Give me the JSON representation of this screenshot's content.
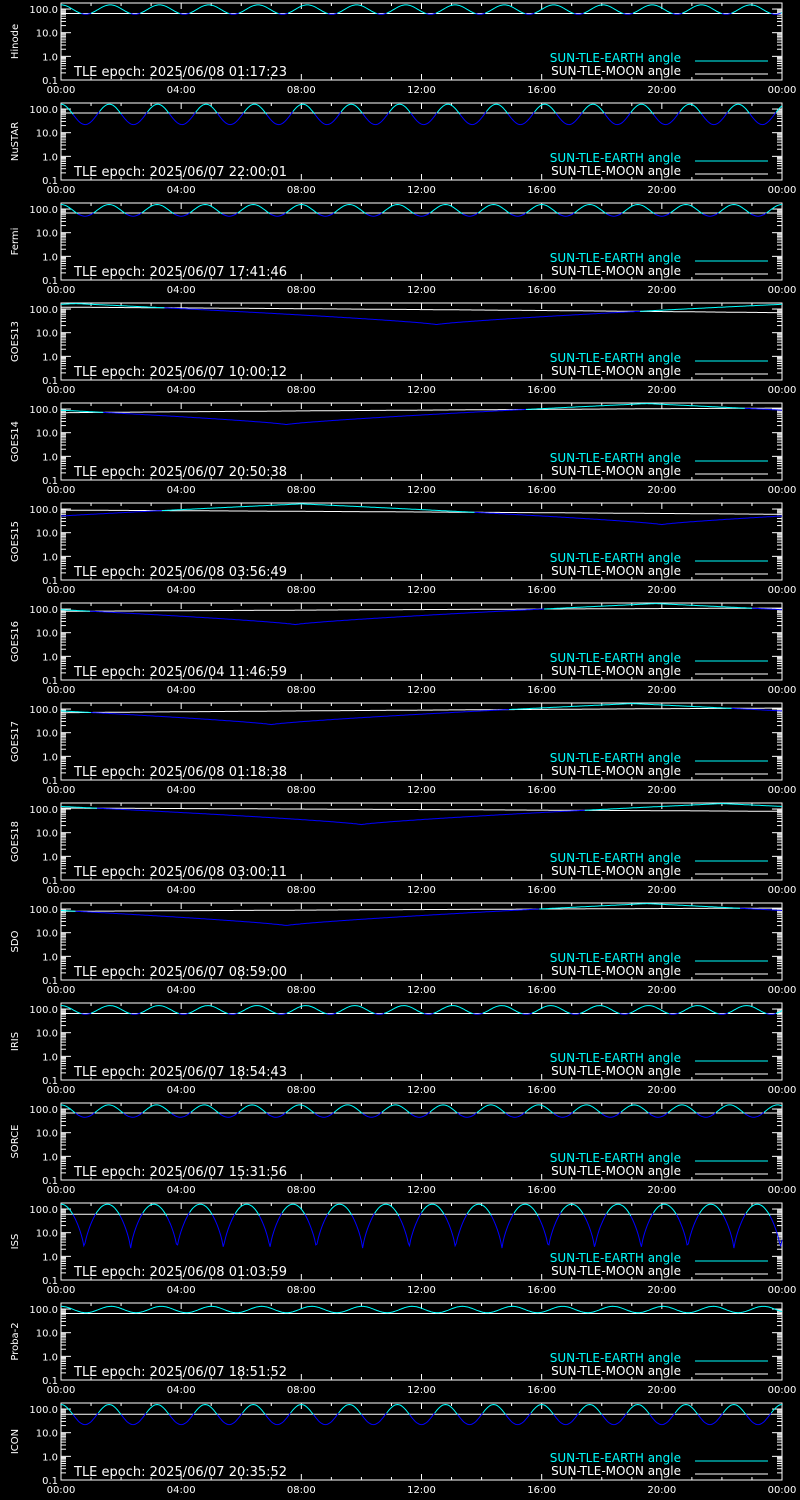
{
  "colors": {
    "background": "#000000",
    "axes": "#ffffff",
    "sun_earth": "#00ffff",
    "sun_moon": "#ffffff",
    "dip": "#0000ff"
  },
  "legend": {
    "earth_label": "SUN-TLE-EARTH angle",
    "moon_label": "SUN-TLE-MOON angle",
    "placement": "bottom-right"
  },
  "x_ticks": [
    "00:00",
    "04:00",
    "08:00",
    "12:00",
    "16:00",
    "20:00",
    "00:00"
  ],
  "y_ticks": [
    "100.0",
    "10.0",
    "1.0",
    "0.1"
  ],
  "chart_data": [
    {
      "type": "line",
      "panel_label": "Hinode",
      "epoch": "TLE epoch: 2025/06/08 01:17:23",
      "ylim": [
        0.1,
        180
      ],
      "y_scale": "log",
      "x_range_hours": [
        0,
        24
      ],
      "series": [
        {
          "kind": "earth_orbit",
          "period_hours": 1.64,
          "max": 150,
          "min": 60
        },
        {
          "kind": "moon_flat",
          "value": 65
        }
      ]
    },
    {
      "type": "line",
      "panel_label": "NuSTAR",
      "epoch": "TLE epoch: 2025/06/07 22:00:01",
      "ylim": [
        0.1,
        180
      ],
      "y_scale": "log",
      "x_range_hours": [
        0,
        24
      ],
      "series": [
        {
          "kind": "earth_orbit",
          "period_hours": 1.61,
          "max": 160,
          "min": 22
        },
        {
          "kind": "moon_flat",
          "value": 68
        }
      ]
    },
    {
      "type": "line",
      "panel_label": "Fermi",
      "epoch": "TLE epoch: 2025/06/07 17:41:46",
      "ylim": [
        0.1,
        180
      ],
      "y_scale": "log",
      "x_range_hours": [
        0,
        24
      ],
      "series": [
        {
          "kind": "earth_orbit",
          "period_hours": 1.6,
          "max": 155,
          "min": 50
        },
        {
          "kind": "moon_flat",
          "value": 68
        }
      ]
    },
    {
      "type": "line",
      "panel_label": "GOES13",
      "epoch": "TLE epoch: 2025/06/07 10:00:12",
      "ylim": [
        0.1,
        180
      ],
      "y_scale": "log",
      "x_range_hours": [
        0,
        24
      ],
      "series": [
        {
          "kind": "earth_geo",
          "min_hour": 12.5,
          "max": 170,
          "min": 22
        },
        {
          "kind": "moon_linear",
          "start": 120,
          "end": 70
        }
      ]
    },
    {
      "type": "line",
      "panel_label": "GOES14",
      "epoch": "TLE epoch: 2025/06/07 20:50:38",
      "ylim": [
        0.1,
        180
      ],
      "y_scale": "log",
      "x_range_hours": [
        0,
        24
      ],
      "series": [
        {
          "kind": "earth_geo",
          "min_hour": 7.5,
          "max": 170,
          "min": 22
        },
        {
          "kind": "moon_linear",
          "start": 70,
          "end": 110
        }
      ]
    },
    {
      "type": "line",
      "panel_label": "GOES15",
      "epoch": "TLE epoch: 2025/06/08 03:56:49",
      "ylim": [
        0.1,
        180
      ],
      "y_scale": "log",
      "x_range_hours": [
        0,
        24
      ],
      "series": [
        {
          "kind": "earth_geo",
          "min_hour": 20,
          "max": 165,
          "min": 22
        },
        {
          "kind": "moon_linear",
          "start": 90,
          "end": 60
        }
      ]
    },
    {
      "type": "line",
      "panel_label": "GOES16",
      "epoch": "TLE epoch: 2025/06/04 11:46:59",
      "ylim": [
        0.1,
        180
      ],
      "y_scale": "log",
      "x_range_hours": [
        0,
        24
      ],
      "series": [
        {
          "kind": "earth_geo",
          "min_hour": 7.8,
          "max": 170,
          "min": 22
        },
        {
          "kind": "moon_linear",
          "start": 80,
          "end": 110
        }
      ]
    },
    {
      "type": "line",
      "panel_label": "GOES17",
      "epoch": "TLE epoch: 2025/06/08 01:18:38",
      "ylim": [
        0.1,
        180
      ],
      "y_scale": "log",
      "x_range_hours": [
        0,
        24
      ],
      "series": [
        {
          "kind": "earth_geo",
          "min_hour": 7,
          "max": 170,
          "min": 22
        },
        {
          "kind": "moon_linear",
          "start": 70,
          "end": 110
        }
      ]
    },
    {
      "type": "line",
      "panel_label": "GOES18",
      "epoch": "TLE epoch: 2025/06/08 03:00:11",
      "ylim": [
        0.1,
        180
      ],
      "y_scale": "log",
      "x_range_hours": [
        0,
        24
      ],
      "series": [
        {
          "kind": "earth_geo",
          "min_hour": 10,
          "max": 170,
          "min": 22
        },
        {
          "kind": "moon_linear",
          "start": 110,
          "end": 80
        }
      ]
    },
    {
      "type": "line",
      "panel_label": "SDO",
      "epoch": "TLE epoch: 2025/06/07 08:59:00",
      "ylim": [
        0.1,
        180
      ],
      "y_scale": "log",
      "x_range_hours": [
        0,
        24
      ],
      "series": [
        {
          "kind": "earth_geo",
          "min_hour": 7.5,
          "max": 170,
          "min": 20
        },
        {
          "kind": "moon_linear",
          "start": 80,
          "end": 110
        }
      ]
    },
    {
      "type": "line",
      "panel_label": "IRIS",
      "epoch": "TLE epoch: 2025/06/07 18:54:43",
      "ylim": [
        0.1,
        180
      ],
      "y_scale": "log",
      "x_range_hours": [
        0,
        24
      ],
      "series": [
        {
          "kind": "earth_orbit",
          "period_hours": 1.63,
          "max": 140,
          "min": 60
        },
        {
          "kind": "moon_flat",
          "value": 65
        }
      ]
    },
    {
      "type": "line",
      "panel_label": "SORCE",
      "epoch": "TLE epoch: 2025/06/07 15:31:56",
      "ylim": [
        0.1,
        180
      ],
      "y_scale": "log",
      "x_range_hours": [
        0,
        24
      ],
      "series": [
        {
          "kind": "earth_orbit",
          "period_hours": 1.59,
          "max": 150,
          "min": 45
        },
        {
          "kind": "moon_flat",
          "value": 68
        }
      ]
    },
    {
      "type": "line",
      "panel_label": "ISS",
      "epoch": "TLE epoch: 2025/06/08 01:03:59",
      "ylim": [
        0.1,
        180
      ],
      "y_scale": "log",
      "x_range_hours": [
        0,
        24
      ],
      "series": [
        {
          "kind": "earth_orbit",
          "period_hours": 1.545,
          "max": 160,
          "min": 2,
          "sharp": true
        },
        {
          "kind": "moon_flat",
          "value": 60
        }
      ]
    },
    {
      "type": "line",
      "panel_label": "Proba-2",
      "epoch": "TLE epoch: 2025/06/07 18:51:52",
      "ylim": [
        0.1,
        180
      ],
      "y_scale": "log",
      "x_range_hours": [
        0,
        24
      ],
      "series": [
        {
          "kind": "earth_orbit",
          "period_hours": 1.67,
          "max": 130,
          "min": 70
        },
        {
          "kind": "moon_flat",
          "value": 65
        }
      ]
    },
    {
      "type": "line",
      "panel_label": "ICON",
      "epoch": "TLE epoch: 2025/06/07 20:35:52",
      "ylim": [
        0.1,
        180
      ],
      "y_scale": "log",
      "x_range_hours": [
        0,
        24
      ],
      "series": [
        {
          "kind": "earth_orbit",
          "period_hours": 1.6,
          "max": 155,
          "min": 22
        },
        {
          "kind": "moon_flat",
          "value": 60
        }
      ]
    }
  ]
}
